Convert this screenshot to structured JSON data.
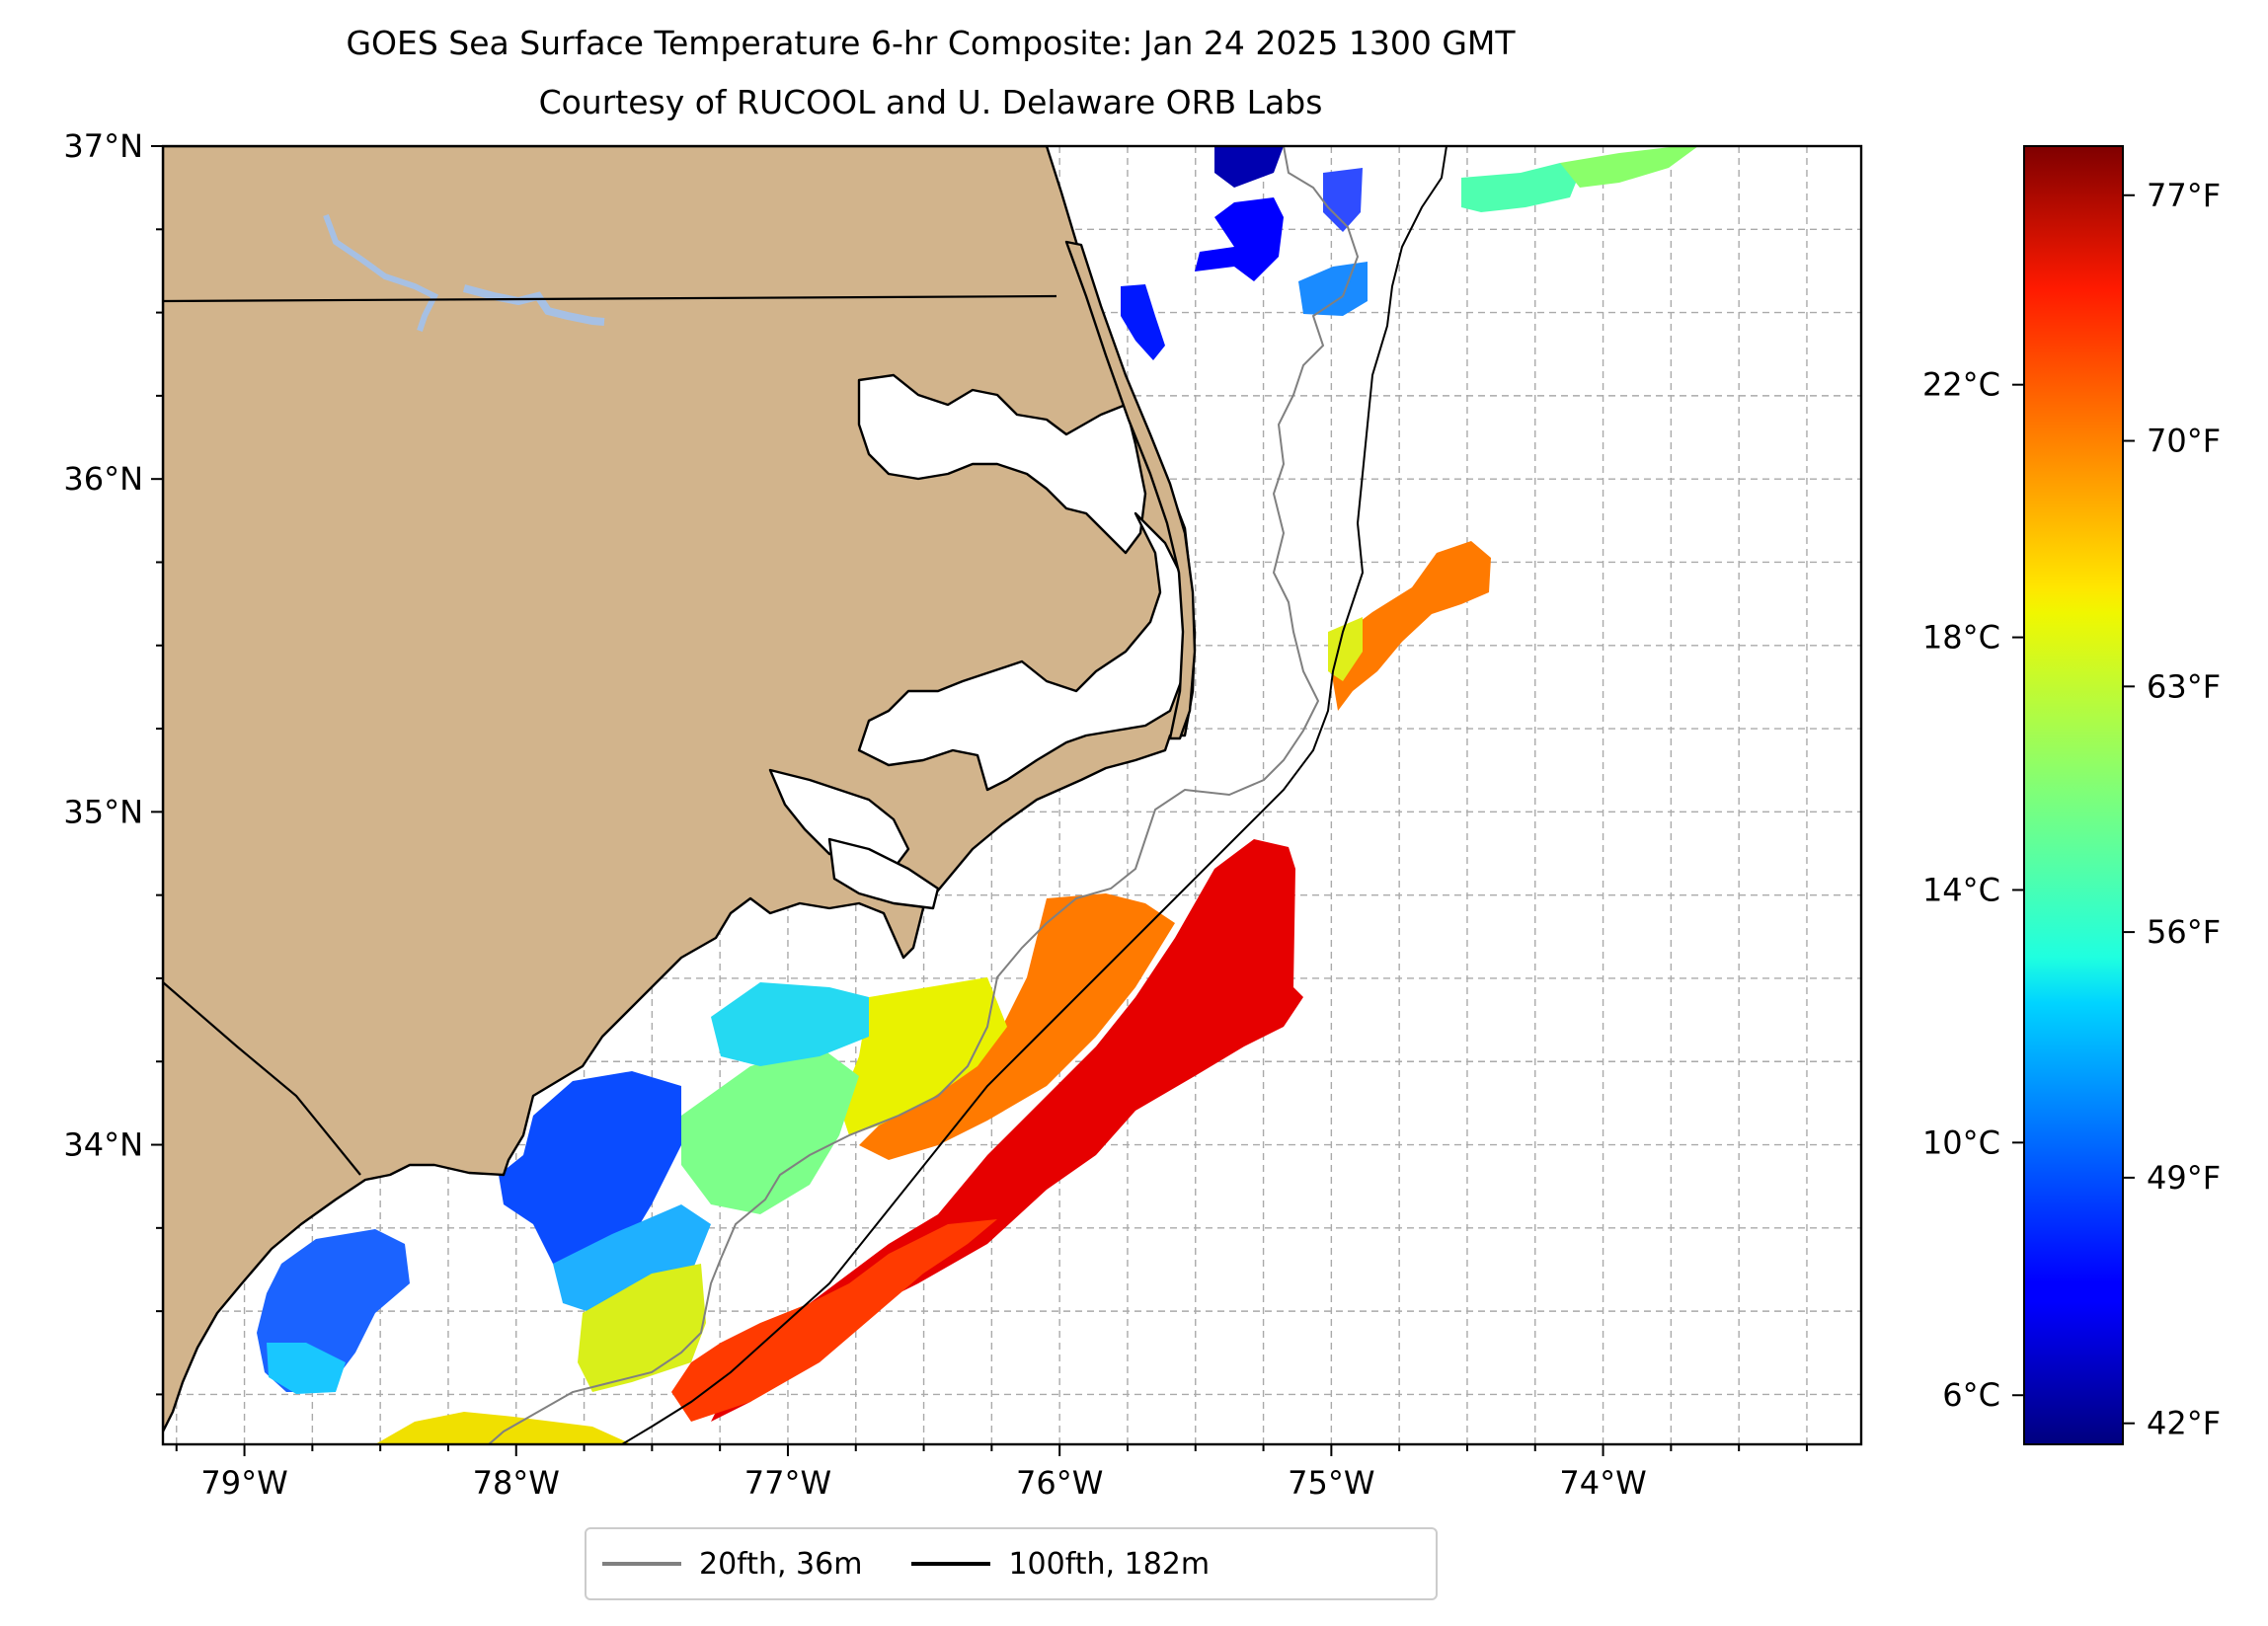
{
  "title": "GOES Sea Surface Temperature 6-hr Composite: Jan 24 2025 1300 GMT",
  "subtitle": "Courtesy of RUCOOL and U. Delaware ORB Labs",
  "map": {
    "lon_range": [
      -79.3,
      -73.05
    ],
    "lat_range": [
      33.1,
      37.0
    ],
    "lon_ticks": [
      {
        "value": -79,
        "label": "79°W"
      },
      {
        "value": -78,
        "label": "78°W"
      },
      {
        "value": -77,
        "label": "77°W"
      },
      {
        "value": -76,
        "label": "76°W"
      },
      {
        "value": -75,
        "label": "75°W"
      },
      {
        "value": -74,
        "label": "74°W"
      }
    ],
    "lat_ticks": [
      {
        "value": 34,
        "label": "34°N"
      },
      {
        "value": 35,
        "label": "35°N"
      },
      {
        "value": 36,
        "label": "36°N"
      },
      {
        "value": 37,
        "label": "37°N"
      }
    ],
    "grid": true,
    "colors": {
      "land": "#d2b48c",
      "lakes": "#a6c0e4",
      "coast": "#000000",
      "isobath_20": "#808080",
      "isobath_100": "#000000",
      "grid": "#aaaaaa"
    }
  },
  "colorbar": {
    "colormap": "jet",
    "celsius_ticks": [
      {
        "value": 6,
        "label": "6°C"
      },
      {
        "value": 10,
        "label": "10°C"
      },
      {
        "value": 14,
        "label": "14°C"
      },
      {
        "value": 18,
        "label": "18°C"
      },
      {
        "value": 22,
        "label": "22°C"
      }
    ],
    "fahrenheit_ticks": [
      {
        "value": 42,
        "label": "42°F"
      },
      {
        "value": 49,
        "label": "49°F"
      },
      {
        "value": 56,
        "label": "56°F"
      },
      {
        "value": 63,
        "label": "63°F"
      },
      {
        "value": 70,
        "label": "70°F"
      },
      {
        "value": 77,
        "label": "77°F"
      }
    ],
    "range_f": [
      41.4,
      78.4
    ]
  },
  "legend": {
    "items": [
      {
        "label": "20fth, 36m",
        "color": "#808080"
      },
      {
        "label": "100fth, 182m",
        "color": "#000000"
      }
    ],
    "placement": "below"
  }
}
